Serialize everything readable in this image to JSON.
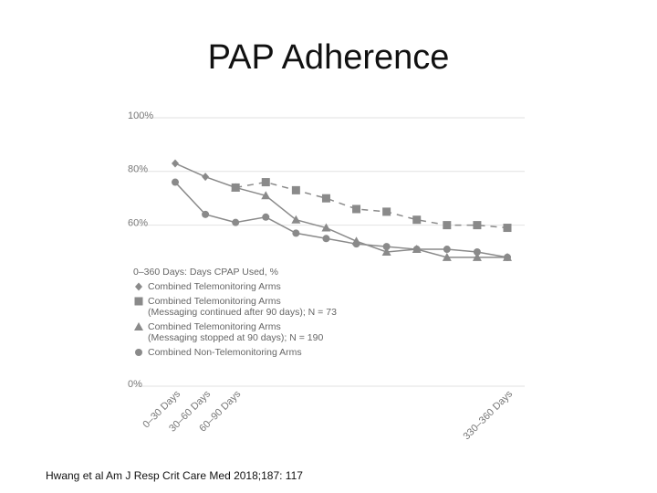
{
  "chart_data": {
    "type": "line",
    "title": "PAP Adherence",
    "legend_title": "0–360 Days: Days CPAP Used, %",
    "categories": [
      "0–30 Days",
      "30–60 Days",
      "60–90 Days",
      null,
      null,
      null,
      null,
      null,
      null,
      null,
      null,
      "330–360 Days"
    ],
    "series": [
      {
        "name": "Combined Telemonitoring Arms",
        "color": "#8a8a8a",
        "marker": "diamond",
        "dashed": false,
        "values": [
          83,
          78,
          74,
          null,
          null,
          null,
          null,
          null,
          null,
          null,
          null,
          null
        ]
      },
      {
        "name": "Combined Telemonitoring Arms\n(Messaging continued after 90 days); N = 73",
        "color": "#8a8a8a",
        "marker": "square",
        "dashed": true,
        "values": [
          null,
          null,
          74,
          76,
          73,
          70,
          66,
          65,
          62,
          60,
          60,
          59
        ]
      },
      {
        "name": "Combined Telemonitoring Arms\n(Messaging stopped at 90 days); N = 190",
        "color": "#8a8a8a",
        "marker": "triangle",
        "dashed": false,
        "values": [
          null,
          null,
          74,
          71,
          62,
          59,
          54,
          50,
          51,
          48,
          48,
          48
        ]
      },
      {
        "name": "Combined Non-Telemonitoring Arms",
        "color": "#8a8a8a",
        "marker": "circle",
        "dashed": false,
        "values": [
          76,
          64,
          61,
          63,
          57,
          55,
          53,
          52,
          51,
          51,
          50,
          48
        ]
      }
    ],
    "ylim": [
      0,
      100
    ],
    "yticks": [
      {
        "value": 0,
        "label": "0%"
      },
      {
        "value": 60,
        "label": "60%"
      },
      {
        "value": 80,
        "label": "80%"
      },
      {
        "value": 100,
        "label": "100%"
      }
    ],
    "grid": true,
    "footnote": "Hwang et al Am J Resp Crit Care Med 2018;187: 117"
  }
}
